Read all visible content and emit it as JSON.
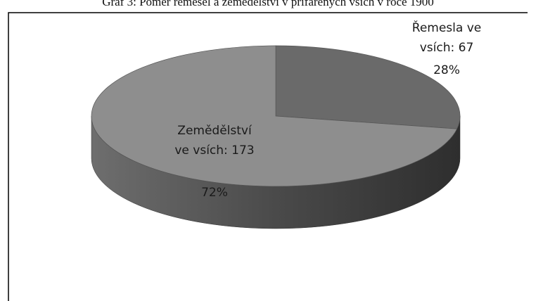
{
  "chart_data": {
    "type": "pie3d",
    "title": "Graf 3: Poměr řemesel a zemědělství v přifařených vsích v roce 1900",
    "categories": [
      "Řemesla ve vsích",
      "Zemědělství ve vsích"
    ],
    "values": [
      67,
      173
    ],
    "value_labels": [
      "Řemesla ve vsích: 67",
      "Zemědělství ve vsích: 173"
    ],
    "percent_labels": [
      "28%",
      "72%"
    ],
    "colors": [
      "#6a6a6a",
      "#8e8e8e"
    ]
  }
}
